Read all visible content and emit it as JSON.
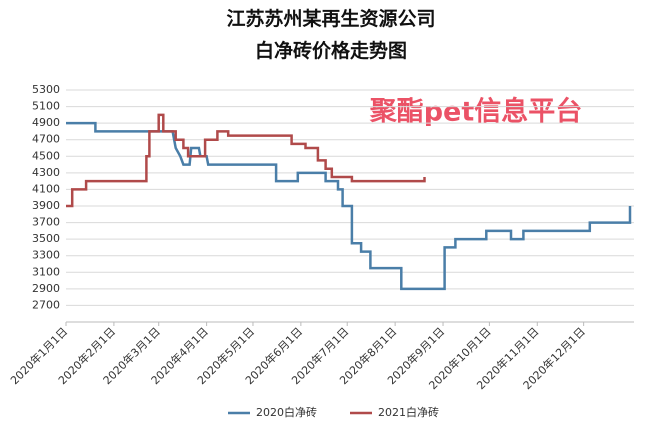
{
  "chart_data": {
    "type": "line",
    "title": "江苏苏州某再生资源公司",
    "subtitle": "白净砖价格走势图",
    "annotation": "聚酯pet信息平台",
    "xlim": [
      "2020-01-01",
      "2020-12-31"
    ],
    "xticks": [
      {
        "value": "2020-01-01",
        "label": "2020年1月1日"
      },
      {
        "value": "2020-02-01",
        "label": "2020年2月1日"
      },
      {
        "value": "2020-03-01",
        "label": "2020年3月1日"
      },
      {
        "value": "2020-04-01",
        "label": "2020年4月1日"
      },
      {
        "value": "2020-05-01",
        "label": "2020年5月1日"
      },
      {
        "value": "2020-06-01",
        "label": "2020年6月1日"
      },
      {
        "value": "2020-07-01",
        "label": "2020年7月1日"
      },
      {
        "value": "2020-08-01",
        "label": "2020年8月1日"
      },
      {
        "value": "2020-09-01",
        "label": "2020年9月1日"
      },
      {
        "value": "2020-10-01",
        "label": "2020年10月1日"
      },
      {
        "value": "2020-11-01",
        "label": "2020年11月1日"
      },
      {
        "value": "2020-12-01",
        "label": "2020年12月1日"
      }
    ],
    "ylim": [
      2500,
      5300
    ],
    "yticks": [
      2700,
      2900,
      3100,
      3300,
      3500,
      3700,
      3900,
      4100,
      4300,
      4500,
      4700,
      4900,
      5100,
      5300
    ],
    "grid": true,
    "legend": "bottom",
    "series": [
      {
        "name": "2020白净砖",
        "color": "#4a7ea8",
        "x": [
          "2020-01-01",
          "2020-01-20",
          "2020-01-20",
          "2020-03-10",
          "2020-03-12",
          "2020-03-15",
          "2020-03-17",
          "2020-03-21",
          "2020-03-22",
          "2020-03-27",
          "2020-03-28",
          "2020-04-01",
          "2020-04-02",
          "2020-05-16",
          "2020-05-16",
          "2020-05-30",
          "2020-05-30",
          "2020-06-17",
          "2020-06-17",
          "2020-06-25",
          "2020-06-25",
          "2020-06-28",
          "2020-06-28",
          "2020-07-04",
          "2020-07-04",
          "2020-07-10",
          "2020-07-10",
          "2020-07-16",
          "2020-07-16",
          "2020-08-05",
          "2020-08-05",
          "2020-09-02",
          "2020-09-02",
          "2020-09-09",
          "2020-09-09",
          "2020-09-29",
          "2020-09-29",
          "2020-10-15",
          "2020-10-15",
          "2020-10-23",
          "2020-10-23",
          "2020-12-05",
          "2020-12-05",
          "2020-12-31",
          "2020-12-31"
        ],
        "values": [
          4900,
          4900,
          4800,
          4800,
          4600,
          4500,
          4400,
          4400,
          4600,
          4600,
          4500,
          4500,
          4400,
          4400,
          4200,
          4200,
          4300,
          4300,
          4200,
          4200,
          4100,
          4100,
          3900,
          3900,
          3450,
          3450,
          3350,
          3350,
          3150,
          3150,
          2900,
          2900,
          3400,
          3400,
          3500,
          3500,
          3600,
          3600,
          3500,
          3500,
          3600,
          3600,
          3700,
          3700,
          3900
        ]
      },
      {
        "name": "2021白净砖",
        "color": "#b04a4a",
        "x": [
          "2020-01-01",
          "2020-01-05",
          "2020-01-05",
          "2020-01-14",
          "2020-01-14",
          "2020-02-22",
          "2020-02-22",
          "2020-02-24",
          "2020-02-24",
          "2020-03-01",
          "2020-03-01",
          "2020-03-04",
          "2020-03-04",
          "2020-03-12",
          "2020-03-12",
          "2020-03-17",
          "2020-03-17",
          "2020-03-20",
          "2020-03-20",
          "2020-03-31",
          "2020-03-31",
          "2020-04-08",
          "2020-04-08",
          "2020-04-15",
          "2020-04-15",
          "2020-05-26",
          "2020-05-26",
          "2020-06-04",
          "2020-06-04",
          "2020-06-12",
          "2020-06-12",
          "2020-06-17",
          "2020-06-17",
          "2020-06-21",
          "2020-06-21",
          "2020-07-04",
          "2020-07-04",
          "2020-08-20",
          "2020-08-20"
        ],
        "values": [
          3900,
          3900,
          4100,
          4100,
          4200,
          4200,
          4500,
          4500,
          4800,
          4800,
          5000,
          5000,
          4800,
          4800,
          4700,
          4700,
          4600,
          4600,
          4500,
          4500,
          4700,
          4700,
          4800,
          4800,
          4750,
          4750,
          4650,
          4650,
          4600,
          4600,
          4450,
          4450,
          4350,
          4350,
          4250,
          4250,
          4200,
          4200,
          4250
        ]
      }
    ]
  }
}
